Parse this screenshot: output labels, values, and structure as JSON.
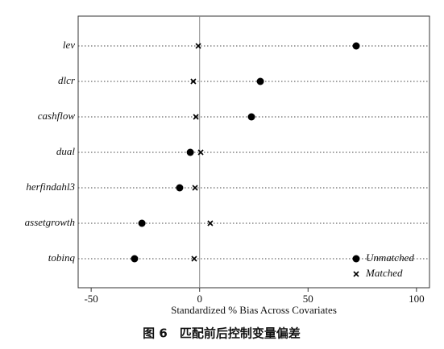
{
  "chart_data": {
    "type": "dot",
    "categories": [
      "lev",
      "dlcr",
      "cashflow",
      "dual",
      "herfindahl3",
      "assetgrowth",
      "tobinq"
    ],
    "series": [
      {
        "name": "Unmatched",
        "color": "#000000",
        "marker": "circle",
        "values": [
          72.2,
          28,
          23.9,
          -4.3,
          -9.2,
          -26.6,
          -30
        ]
      },
      {
        "name": "Matched",
        "color": "#000000",
        "marker": "x",
        "values": [
          -0.6,
          -2.9,
          -1.7,
          0.5,
          -2.1,
          4.9,
          -2.5
        ]
      }
    ],
    "xlabel": "Standardized % Bias Across Covariates",
    "xlim": [
      -56,
      106
    ],
    "xticks": [
      -50,
      0,
      50,
      100
    ],
    "zero_line": true,
    "legend": "lower right",
    "caption": "图 6　匹配前后控制变量偏差"
  }
}
